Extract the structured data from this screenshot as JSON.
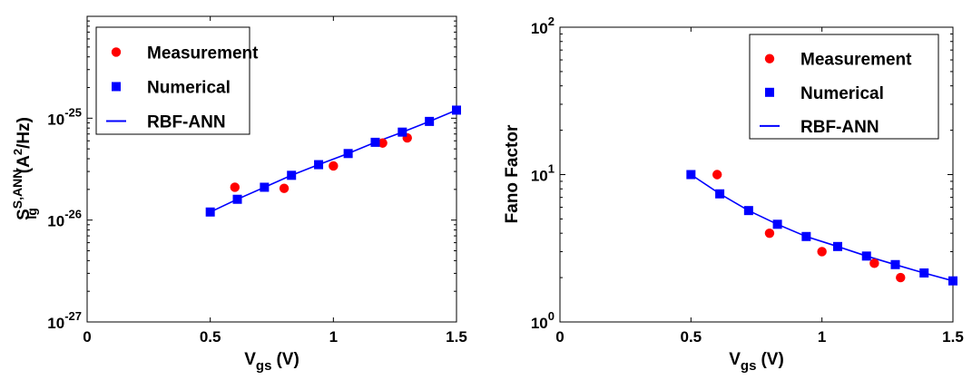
{
  "chart_data": [
    {
      "type": "scatter",
      "xlabel": "V",
      "xlabel_sub": "gs",
      "xlabel_unit": "(V)",
      "ylabel": "S",
      "ylabel_sup": "S,ANN",
      "ylabel_sub": "Ig",
      "ylabel_unit_pre": "(A",
      "ylabel_unit_sup": "2",
      "ylabel_unit_post": "/Hz)",
      "xlim": [
        0,
        1.5
      ],
      "ylim": [
        1e-27,
        1e-24
      ],
      "yscale": "log",
      "grid": false,
      "legend_position": "top-left",
      "x_ticks": [
        {
          "value": 0,
          "label": "0"
        },
        {
          "value": 0.5,
          "label": "0.5"
        },
        {
          "value": 1,
          "label": "1"
        },
        {
          "value": 1.5,
          "label": "1.5"
        }
      ],
      "y_ticks": [
        {
          "value": 1e-27,
          "base": "10",
          "exp": "-27"
        },
        {
          "value": 1e-26,
          "base": "10",
          "exp": "-26"
        },
        {
          "value": 1e-25,
          "base": "10",
          "exp": "-25"
        }
      ],
      "series": [
        {
          "name": "Measurement",
          "kind": "marker-circle",
          "color": "#ff0000",
          "x": [
            0.6,
            0.8,
            1.0,
            1.2,
            1.3
          ],
          "y": [
            2.1e-26,
            2.05e-26,
            3.4e-26,
            5.7e-26,
            6.4e-26
          ]
        },
        {
          "name": "Numerical",
          "kind": "marker-square",
          "color": "#0000ff",
          "x": [
            0.5,
            0.61,
            0.72,
            0.83,
            0.94,
            1.06,
            1.17,
            1.28,
            1.39,
            1.5
          ],
          "y": [
            1.2e-26,
            1.6e-26,
            2.1e-26,
            2.75e-26,
            3.5e-26,
            4.5e-26,
            5.8e-26,
            7.3e-26,
            9.3e-26,
            1.2e-25
          ]
        },
        {
          "name": "RBF-ANN",
          "kind": "line",
          "color": "#0000ff",
          "x": [
            0.5,
            0.61,
            0.72,
            0.83,
            0.94,
            1.06,
            1.17,
            1.28,
            1.39,
            1.5
          ],
          "y": [
            1.2e-26,
            1.6e-26,
            2.1e-26,
            2.75e-26,
            3.5e-26,
            4.5e-26,
            5.8e-26,
            7.3e-26,
            9.3e-26,
            1.2e-25
          ]
        }
      ]
    },
    {
      "type": "scatter",
      "xlabel": "V",
      "xlabel_sub": "gs",
      "xlabel_unit": "(V)",
      "ylabel": "Fano Factor",
      "xlim": [
        0,
        1.5
      ],
      "ylim": [
        1,
        100
      ],
      "yscale": "log",
      "grid": false,
      "legend_position": "top-right",
      "x_ticks": [
        {
          "value": 0,
          "label": "0"
        },
        {
          "value": 0.5,
          "label": "0.5"
        },
        {
          "value": 1,
          "label": "1"
        },
        {
          "value": 1.5,
          "label": "1.5"
        }
      ],
      "y_ticks": [
        {
          "value": 1,
          "base": "10",
          "exp": "0"
        },
        {
          "value": 10,
          "base": "10",
          "exp": "1"
        },
        {
          "value": 100,
          "base": "10",
          "exp": "2"
        }
      ],
      "series": [
        {
          "name": "Measurement",
          "kind": "marker-circle",
          "color": "#ff0000",
          "x": [
            0.6,
            0.8,
            1.0,
            1.2,
            1.3
          ],
          "y": [
            10.0,
            4.0,
            3.0,
            2.5,
            2.0
          ]
        },
        {
          "name": "Numerical",
          "kind": "marker-square",
          "color": "#0000ff",
          "x": [
            0.5,
            0.61,
            0.72,
            0.83,
            0.94,
            1.06,
            1.17,
            1.28,
            1.39,
            1.5
          ],
          "y": [
            10.0,
            7.4,
            5.7,
            4.6,
            3.8,
            3.25,
            2.8,
            2.45,
            2.15,
            1.9
          ]
        },
        {
          "name": "RBF-ANN",
          "kind": "line",
          "color": "#0000ff",
          "x": [
            0.5,
            0.61,
            0.72,
            0.83,
            0.94,
            1.06,
            1.17,
            1.28,
            1.39,
            1.5
          ],
          "y": [
            10.0,
            7.4,
            5.7,
            4.6,
            3.8,
            3.25,
            2.8,
            2.45,
            2.15,
            1.9
          ]
        }
      ]
    }
  ]
}
